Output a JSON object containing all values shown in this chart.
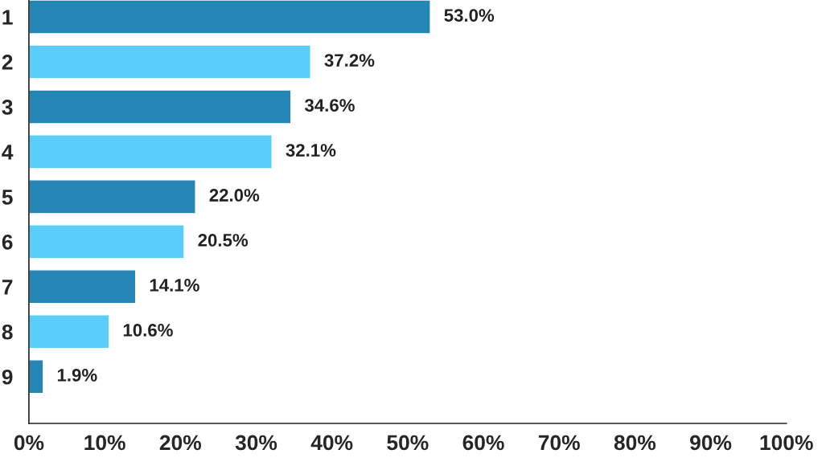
{
  "chart_data": {
    "type": "bar",
    "orientation": "horizontal",
    "categories": [
      "1",
      "2",
      "3",
      "4",
      "5",
      "6",
      "7",
      "8",
      "9"
    ],
    "values": [
      53.0,
      37.2,
      34.6,
      32.1,
      22.0,
      20.5,
      14.1,
      10.6,
      1.9
    ],
    "value_labels": [
      "53.0%",
      "37.2%",
      "34.6%",
      "32.1%",
      "22.0%",
      "20.5%",
      "14.1%",
      "10.6%",
      "1.9%"
    ],
    "colors": [
      "#2586b5",
      "#5bcdfa",
      "#2586b5",
      "#5bcdfa",
      "#2586b5",
      "#5bcdfa",
      "#2586b5",
      "#5bcdfa",
      "#2586b5"
    ],
    "xlim": [
      0,
      100
    ],
    "xticks": [
      {
        "value": 0,
        "label": "0%"
      },
      {
        "value": 10,
        "label": "10%"
      },
      {
        "value": 20,
        "label": "20%"
      },
      {
        "value": 30,
        "label": "30%"
      },
      {
        "value": 40,
        "label": "40%"
      },
      {
        "value": 50,
        "label": "50%"
      },
      {
        "value": 60,
        "label": "60%"
      },
      {
        "value": 70,
        "label": "70%"
      },
      {
        "value": 80,
        "label": "80%"
      },
      {
        "value": 90,
        "label": "90%"
      },
      {
        "value": 100,
        "label": "100%"
      }
    ],
    "grid": false,
    "legend": false
  }
}
